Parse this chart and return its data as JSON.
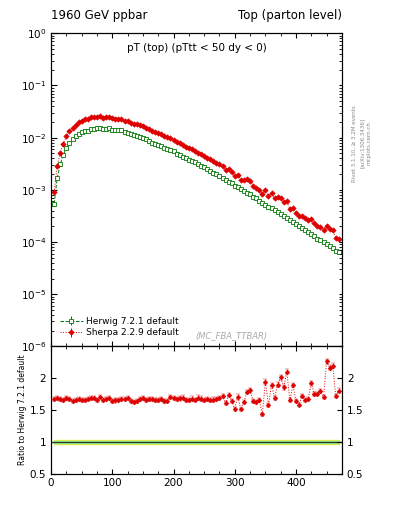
{
  "title_left": "1960 GeV ppbar",
  "title_right": "Top (parton level)",
  "plot_title": "pT (top) (pTtt < 50 dy < 0)",
  "watermark": "(MC_FBA_TTBAR)",
  "ylabel_ratio": "Ratio to Herwig 7.2.1 default",
  "right_label": "Rivet 3.1.10, ≥ 3.2M events",
  "right_label2": "[arXiv:1306.3436]",
  "right_label3": "mcplots.cern.ch",
  "ylim_main_lo": 1e-06,
  "ylim_main_hi": 1.0,
  "ylim_ratio_lo": 0.5,
  "ylim_ratio_hi": 2.5,
  "xmin": 0,
  "xmax": 475,
  "herwig_color": "#007700",
  "sherpa_color": "#dd0000",
  "herwig_label": "Herwig 7.2.1 default",
  "sherpa_label": "Sherpa 2.2.9 default",
  "band_inner_color": "#88ee88",
  "band_outer_color": "#eeee44"
}
